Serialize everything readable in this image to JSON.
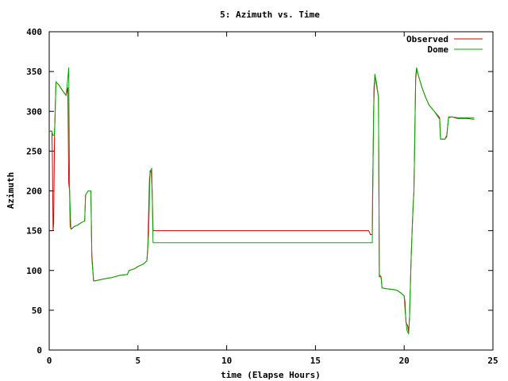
{
  "chart_data": {
    "type": "line",
    "title": "5: Azimuth vs. Time",
    "xlabel": "time (Elapse Hours)",
    "ylabel": "Azimuth",
    "xlim": [
      0,
      25
    ],
    "ylim": [
      0,
      400
    ],
    "xticks": [
      0,
      5,
      10,
      15,
      20,
      25
    ],
    "yticks": [
      0,
      50,
      100,
      150,
      200,
      250,
      300,
      350,
      400
    ],
    "grid": false,
    "legend_position": "top-right",
    "series": [
      {
        "name": "Observed",
        "color": "#cc0000",
        "points": [
          [
            0.0,
            275
          ],
          [
            0.15,
            275
          ],
          [
            0.18,
            240
          ],
          [
            0.22,
            150
          ],
          [
            0.25,
            160
          ],
          [
            0.3,
            270
          ],
          [
            0.32,
            290
          ],
          [
            0.38,
            337
          ],
          [
            0.55,
            333
          ],
          [
            0.75,
            326
          ],
          [
            0.95,
            320
          ],
          [
            1.0,
            325
          ],
          [
            1.05,
            330
          ],
          [
            1.1,
            210
          ],
          [
            1.15,
            200
          ],
          [
            1.18,
            155
          ],
          [
            1.25,
            152
          ],
          [
            1.4,
            155
          ],
          [
            1.6,
            157
          ],
          [
            1.8,
            160
          ],
          [
            2.0,
            162
          ],
          [
            2.05,
            195
          ],
          [
            2.2,
            200
          ],
          [
            2.35,
            200
          ],
          [
            2.4,
            120
          ],
          [
            2.5,
            87
          ],
          [
            2.6,
            87
          ],
          [
            2.8,
            88
          ],
          [
            3.0,
            89
          ],
          [
            3.5,
            91
          ],
          [
            4.0,
            94
          ],
          [
            4.4,
            95
          ],
          [
            4.5,
            100
          ],
          [
            4.8,
            102
          ],
          [
            5.0,
            105
          ],
          [
            5.3,
            108
          ],
          [
            5.5,
            112
          ],
          [
            5.55,
            125
          ],
          [
            5.65,
            215
          ],
          [
            5.7,
            225
          ],
          [
            5.75,
            225
          ],
          [
            5.8,
            200
          ],
          [
            5.85,
            150
          ],
          [
            18.0,
            150
          ],
          [
            18.1,
            145
          ],
          [
            18.2,
            145
          ],
          [
            18.22,
            195
          ],
          [
            18.3,
            330
          ],
          [
            18.35,
            345
          ],
          [
            18.45,
            332
          ],
          [
            18.55,
            318
          ],
          [
            18.6,
            92
          ],
          [
            18.7,
            92
          ],
          [
            18.75,
            78
          ],
          [
            19.0,
            77
          ],
          [
            19.4,
            76
          ],
          [
            19.6,
            75
          ],
          [
            19.8,
            72
          ],
          [
            20.0,
            68
          ],
          [
            20.05,
            60
          ],
          [
            20.1,
            35
          ],
          [
            20.2,
            30
          ],
          [
            20.25,
            22
          ],
          [
            20.3,
            40
          ],
          [
            20.4,
            120
          ],
          [
            20.5,
            180
          ],
          [
            20.55,
            200
          ],
          [
            20.65,
            340
          ],
          [
            20.7,
            353
          ],
          [
            20.8,
            345
          ],
          [
            21.0,
            330
          ],
          [
            21.2,
            318
          ],
          [
            21.4,
            308
          ],
          [
            21.7,
            300
          ],
          [
            22.0,
            292
          ],
          [
            22.05,
            265
          ],
          [
            22.3,
            265
          ],
          [
            22.4,
            270
          ],
          [
            22.5,
            292
          ],
          [
            22.7,
            293
          ],
          [
            23.0,
            291
          ],
          [
            23.5,
            291
          ],
          [
            23.95,
            290
          ]
        ]
      },
      {
        "name": "Dome",
        "color": "#00aa00",
        "points": [
          [
            0.0,
            275
          ],
          [
            0.15,
            275
          ],
          [
            0.2,
            270
          ],
          [
            0.28,
            270
          ],
          [
            0.32,
            285
          ],
          [
            0.38,
            337
          ],
          [
            0.55,
            333
          ],
          [
            0.75,
            326
          ],
          [
            0.95,
            320
          ],
          [
            1.02,
            335
          ],
          [
            1.1,
            355
          ],
          [
            1.15,
            200
          ],
          [
            1.22,
            152
          ],
          [
            1.4,
            155
          ],
          [
            1.6,
            157
          ],
          [
            1.8,
            160
          ],
          [
            2.0,
            162
          ],
          [
            2.05,
            195
          ],
          [
            2.2,
            200
          ],
          [
            2.35,
            200
          ],
          [
            2.4,
            115
          ],
          [
            2.5,
            87
          ],
          [
            2.6,
            87
          ],
          [
            2.8,
            88
          ],
          [
            3.0,
            89
          ],
          [
            3.5,
            91
          ],
          [
            4.0,
            94
          ],
          [
            4.4,
            95
          ],
          [
            4.5,
            100
          ],
          [
            4.8,
            102
          ],
          [
            5.0,
            105
          ],
          [
            5.3,
            108
          ],
          [
            5.5,
            112
          ],
          [
            5.6,
            145
          ],
          [
            5.68,
            225
          ],
          [
            5.78,
            228
          ],
          [
            5.85,
            135
          ],
          [
            18.2,
            135
          ],
          [
            18.28,
            300
          ],
          [
            18.35,
            347
          ],
          [
            18.45,
            335
          ],
          [
            18.55,
            318
          ],
          [
            18.6,
            95
          ],
          [
            18.7,
            92
          ],
          [
            18.75,
            78
          ],
          [
            19.0,
            77
          ],
          [
            19.4,
            76
          ],
          [
            19.6,
            75
          ],
          [
            19.8,
            72
          ],
          [
            20.0,
            68
          ],
          [
            20.05,
            50
          ],
          [
            20.15,
            25
          ],
          [
            20.25,
            20
          ],
          [
            20.3,
            40
          ],
          [
            20.4,
            120
          ],
          [
            20.5,
            180
          ],
          [
            20.55,
            200
          ],
          [
            20.65,
            345
          ],
          [
            20.7,
            355
          ],
          [
            20.8,
            345
          ],
          [
            21.0,
            330
          ],
          [
            21.2,
            318
          ],
          [
            21.4,
            308
          ],
          [
            21.7,
            300
          ],
          [
            22.0,
            290
          ],
          [
            22.05,
            265
          ],
          [
            22.3,
            265
          ],
          [
            22.4,
            268
          ],
          [
            22.5,
            293
          ],
          [
            22.7,
            293
          ],
          [
            23.0,
            292
          ],
          [
            23.5,
            292
          ],
          [
            23.95,
            292
          ]
        ]
      }
    ]
  }
}
